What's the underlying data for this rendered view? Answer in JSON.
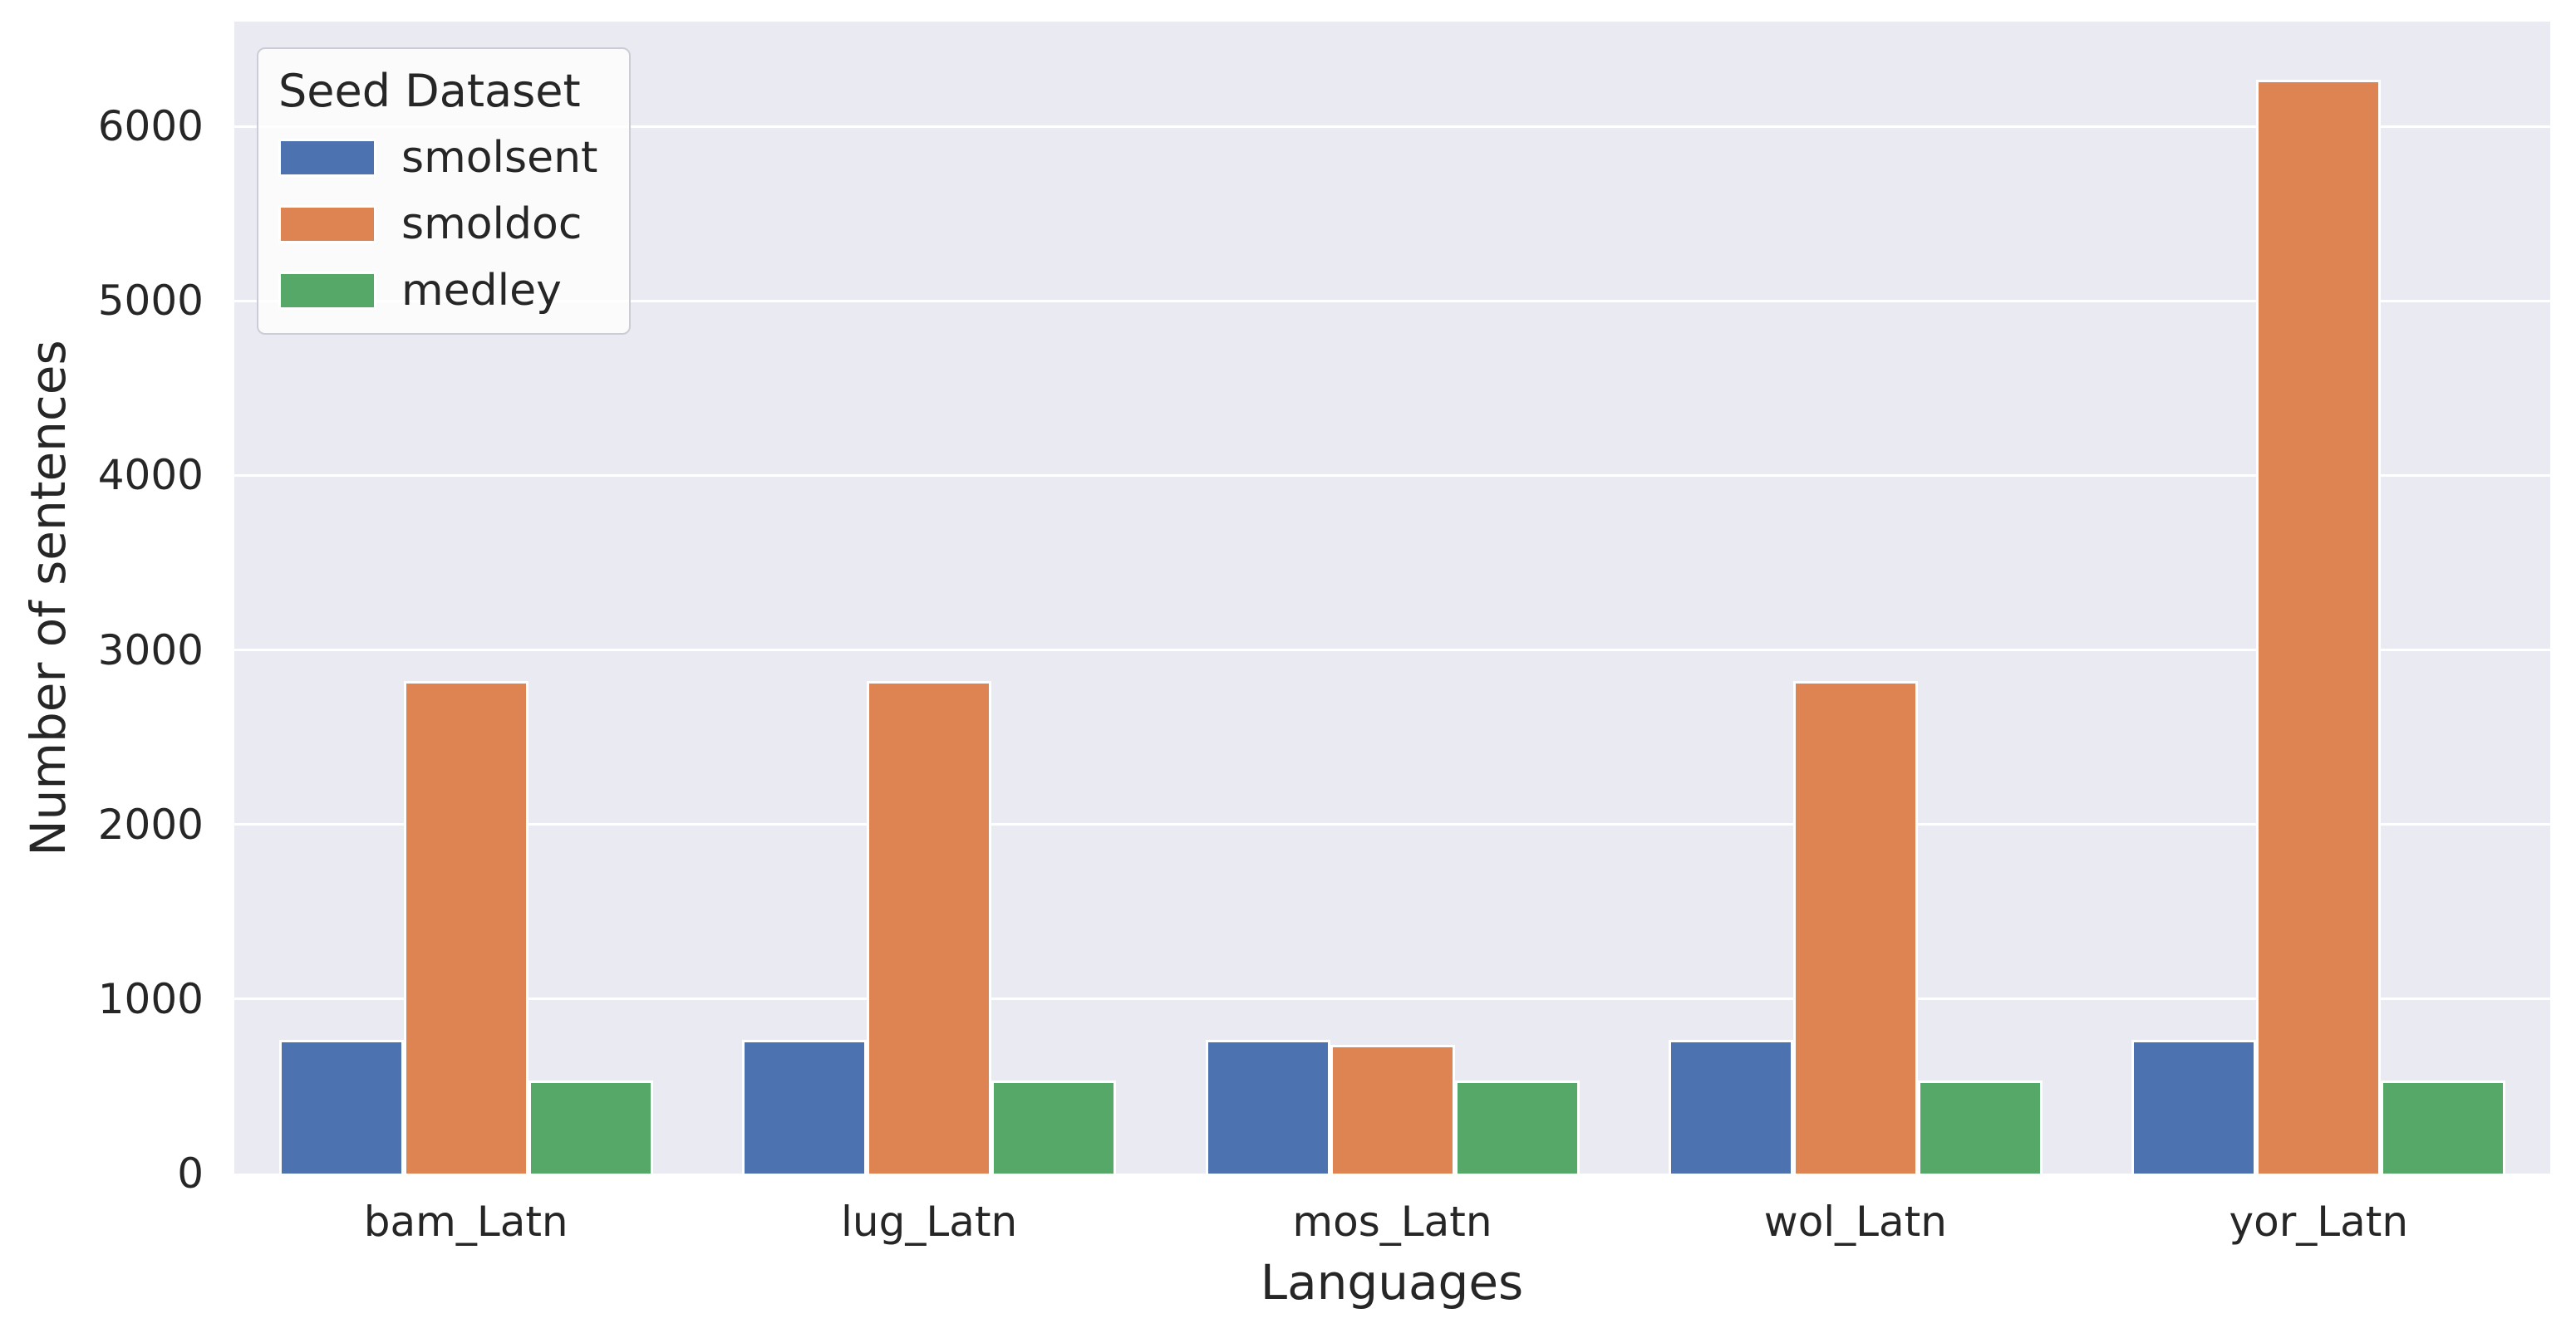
{
  "chart_data": {
    "type": "bar",
    "title": "",
    "xlabel": "Languages",
    "ylabel": "Number of sentences",
    "categories": [
      "bam_Latn",
      "lug_Latn",
      "mos_Latn",
      "wol_Latn",
      "yor_Latn"
    ],
    "series": [
      {
        "name": "smolsent",
        "color": "#4c72b0",
        "values": [
          765,
          765,
          765,
          765,
          765
        ]
      },
      {
        "name": "smoldoc",
        "color": "#dd8452",
        "values": [
          2820,
          2820,
          740,
          2820,
          6265
        ]
      },
      {
        "name": "medley",
        "color": "#55a868",
        "values": [
          535,
          535,
          535,
          535,
          535
        ]
      }
    ],
    "ylim": [
      0,
      6600
    ],
    "yticks": [
      0,
      1000,
      2000,
      3000,
      4000,
      5000,
      6000
    ],
    "grid": true,
    "grid_color": "#ffffff",
    "plot_background": "#eaeaf2",
    "legend": {
      "title": "Seed Dataset",
      "position": "upper left"
    }
  }
}
